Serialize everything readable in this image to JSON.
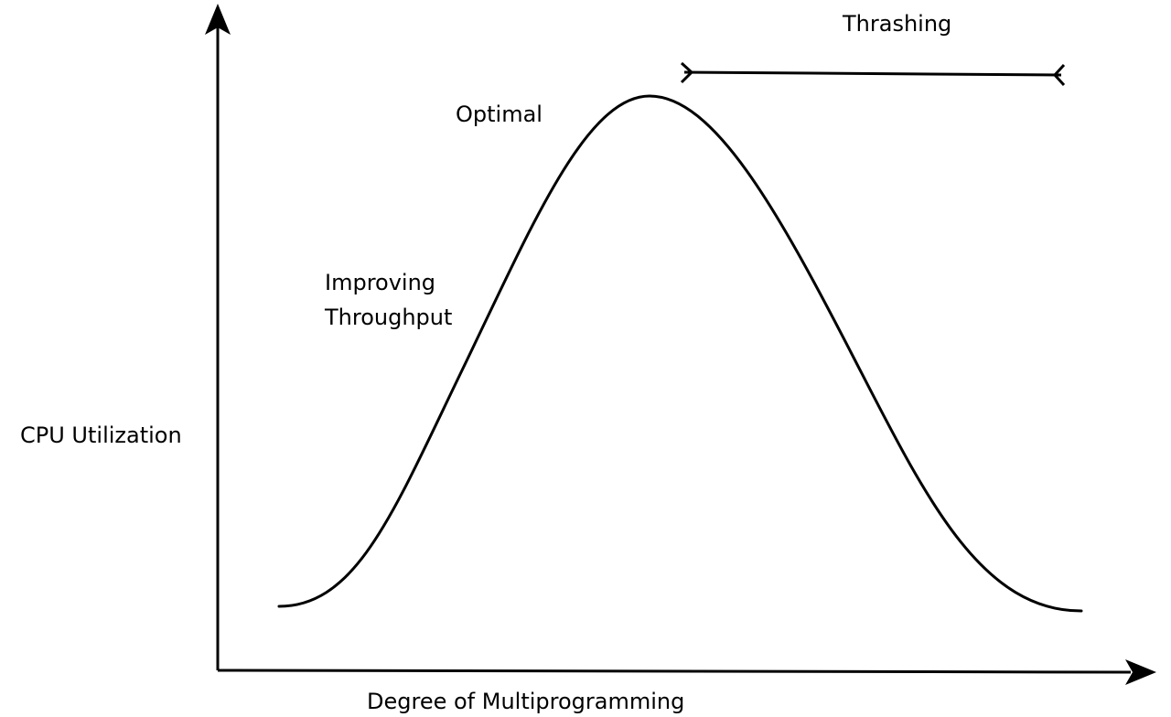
{
  "diagram": {
    "y_axis_label": "CPU Utilization",
    "x_axis_label": "Degree of Multiprogramming",
    "annotations": {
      "optimal": "Optimal",
      "improving_line1": "Improving",
      "improving_line2": "Throughput",
      "thrashing": "Thrashing"
    },
    "colors": {
      "stroke": "#000000",
      "background": "#ffffff"
    }
  }
}
